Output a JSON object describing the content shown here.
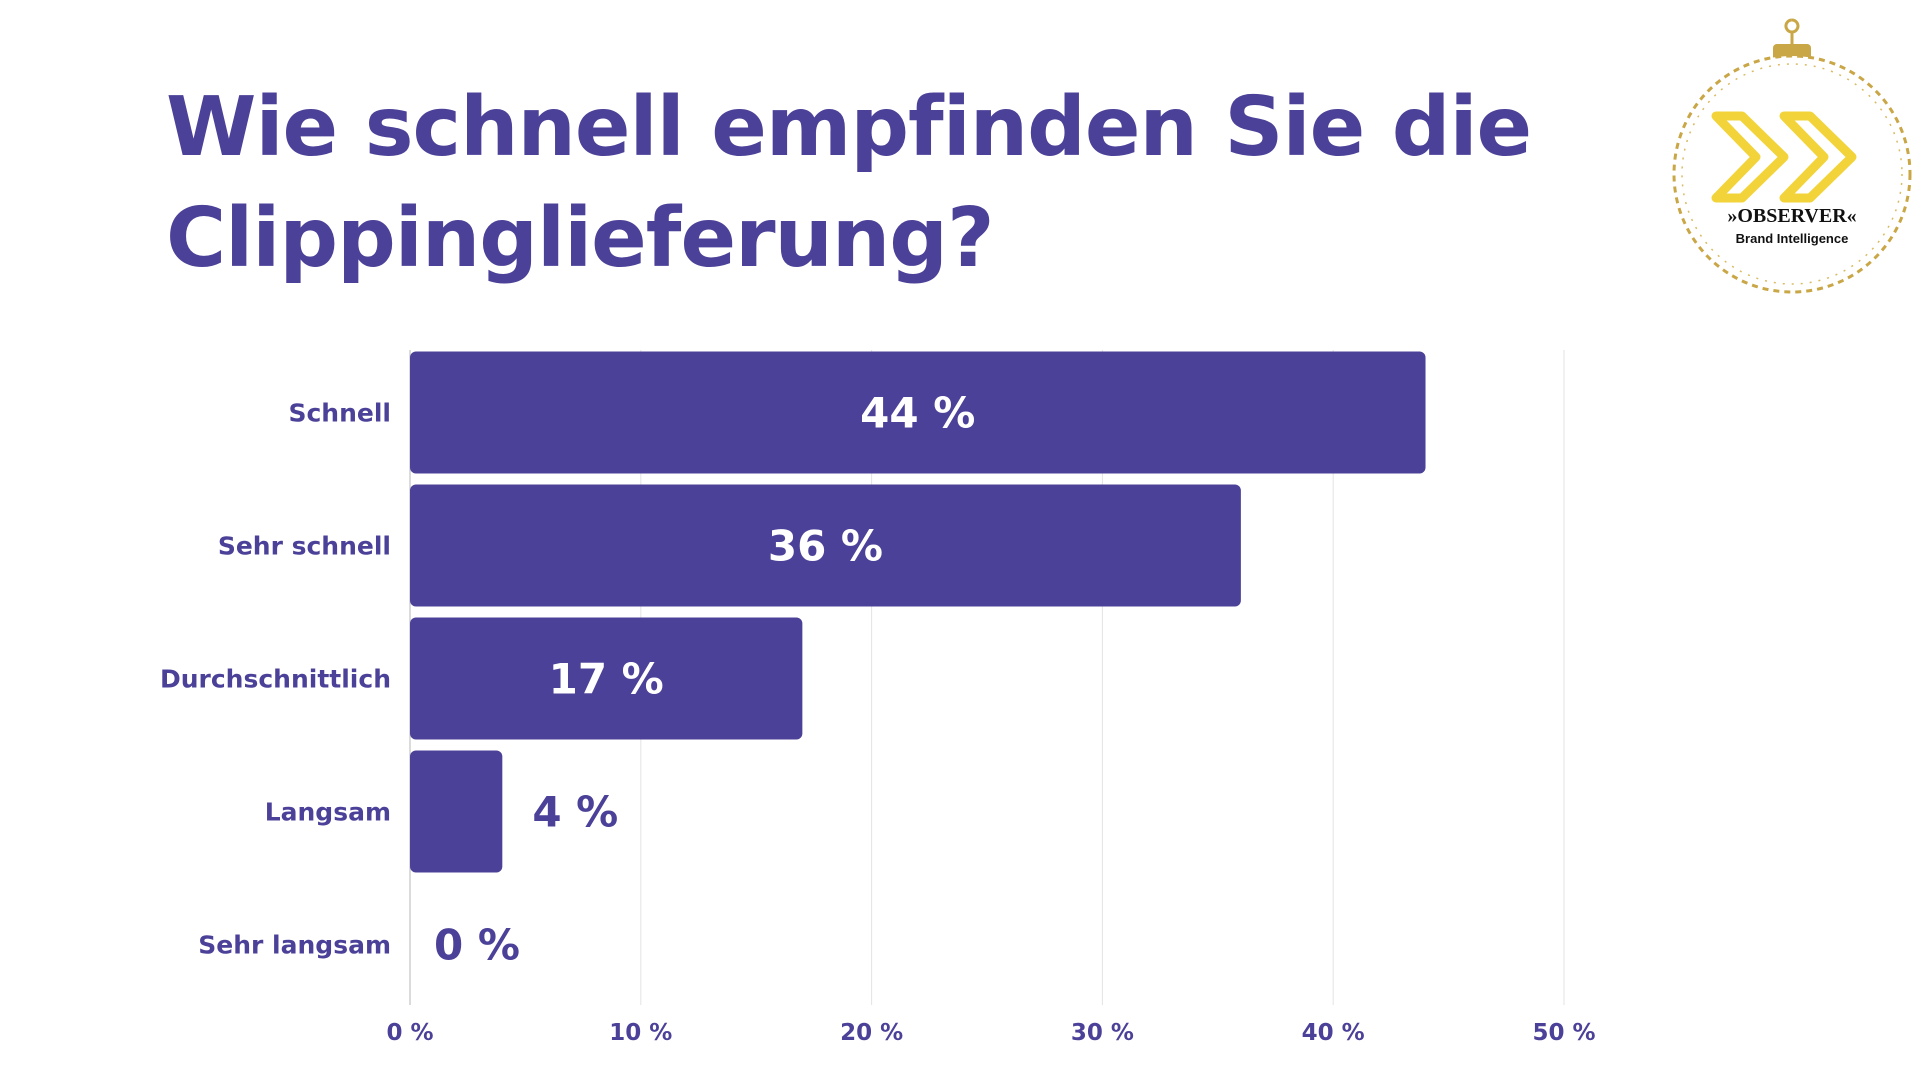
{
  "colors": {
    "accent": "#4b4198",
    "grid": "#e3e3e3",
    "logo_yellow": "#f2d43a",
    "logo_gold": "#c9a646"
  },
  "logo": {
    "line1": "»OBSERVER«",
    "line2": "Brand Intelligence"
  },
  "chart_data": {
    "type": "bar",
    "orientation": "horizontal",
    "title": "Wie schnell empfinden Sie die Clippinglieferung?",
    "categories": [
      "Schnell",
      "Sehr schnell",
      "Durchschnittlich",
      "Langsam",
      "Sehr langsam"
    ],
    "values": [
      44,
      36,
      17,
      4,
      0
    ],
    "value_labels": [
      "44 %",
      "36 %",
      "17 %",
      "4 %",
      "0 %"
    ],
    "xlim": [
      0,
      50
    ],
    "xticks": [
      0,
      10,
      20,
      30,
      40,
      50
    ],
    "xtick_labels": [
      "0 %",
      "10 %",
      "20 %",
      "30 %",
      "40 %",
      "50 %"
    ],
    "grid": true,
    "legend": "none"
  }
}
